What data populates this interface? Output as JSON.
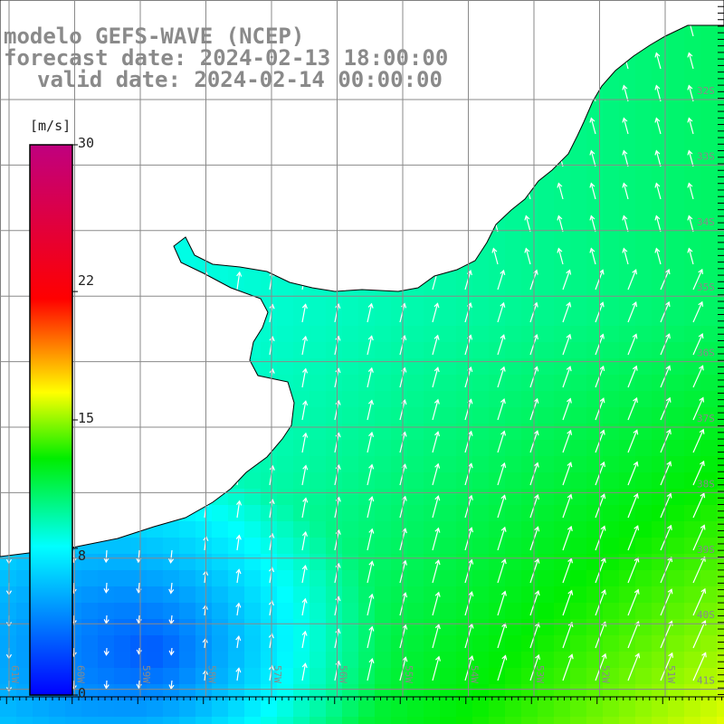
{
  "header": {
    "model": "modelo GEFS-WAVE (NCEP)",
    "forecast_date": "forecast date: 2024-02-13 18:00:00",
    "valid_date": "valid date: 2024-02-14 00:00:00"
  },
  "colorbar": {
    "unit": "[m/s]",
    "ticks": [
      "30",
      "22",
      "15",
      "8",
      "0"
    ],
    "tick_values": [
      30,
      22,
      15,
      8,
      0
    ],
    "range": [
      0,
      30
    ],
    "colors": [
      "#0000ff",
      "#00ffff",
      "#00ff00",
      "#ffff00",
      "#ff0000",
      "#c0007f"
    ]
  },
  "map": {
    "longitudes": [
      "61W",
      "60W",
      "59W",
      "58W",
      "57W",
      "56W",
      "55W",
      "54W",
      "53W",
      "52W",
      "51W"
    ],
    "latitudes": [
      "32S",
      "33S",
      "34S",
      "35S",
      "36S",
      "37S",
      "38S",
      "39S",
      "40S",
      "41S"
    ],
    "grid_color": "#8a8a8a",
    "land_color": "#ffffff"
  }
}
